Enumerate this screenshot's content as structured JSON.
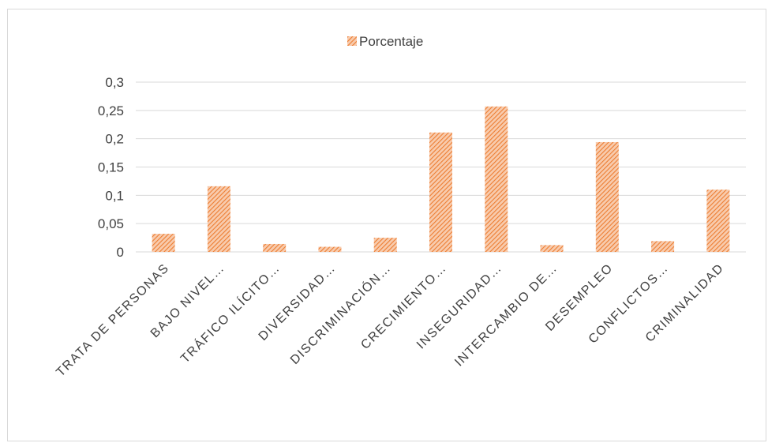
{
  "chart_data": {
    "type": "bar",
    "categories": [
      "TRATA DE PERSONAS",
      "BAJO NIVEL…",
      "TRÁFICO ILÍCITO…",
      "DIVERSIDAD…",
      "DISCRIMINACIÓN…",
      "CRECIMIENTO…",
      "INSEGURIDAD…",
      "INTERCAMBIO DE…",
      "DESEMPLEO",
      "CONFLICTOS…",
      "CRIMINALIDAD"
    ],
    "series": [
      {
        "name": "Porcentaje",
        "values": [
          0.032,
          0.116,
          0.014,
          0.009,
          0.025,
          0.211,
          0.257,
          0.012,
          0.194,
          0.019,
          0.11
        ]
      }
    ],
    "ylim": [
      0,
      0.3
    ],
    "yticks": [
      0,
      0.05,
      0.1,
      0.15,
      0.2,
      0.25,
      0.3
    ],
    "ytick_labels": [
      "0",
      "0,05",
      "0,1",
      "0,15",
      "0,2",
      "0,25",
      "0,3"
    ],
    "grid": true,
    "legend_position": "top",
    "colors": {
      "bar_fill": "#f4b183",
      "bar_hatch": "#ed7d31",
      "grid": "#d9d9d9",
      "text": "#404040"
    }
  }
}
